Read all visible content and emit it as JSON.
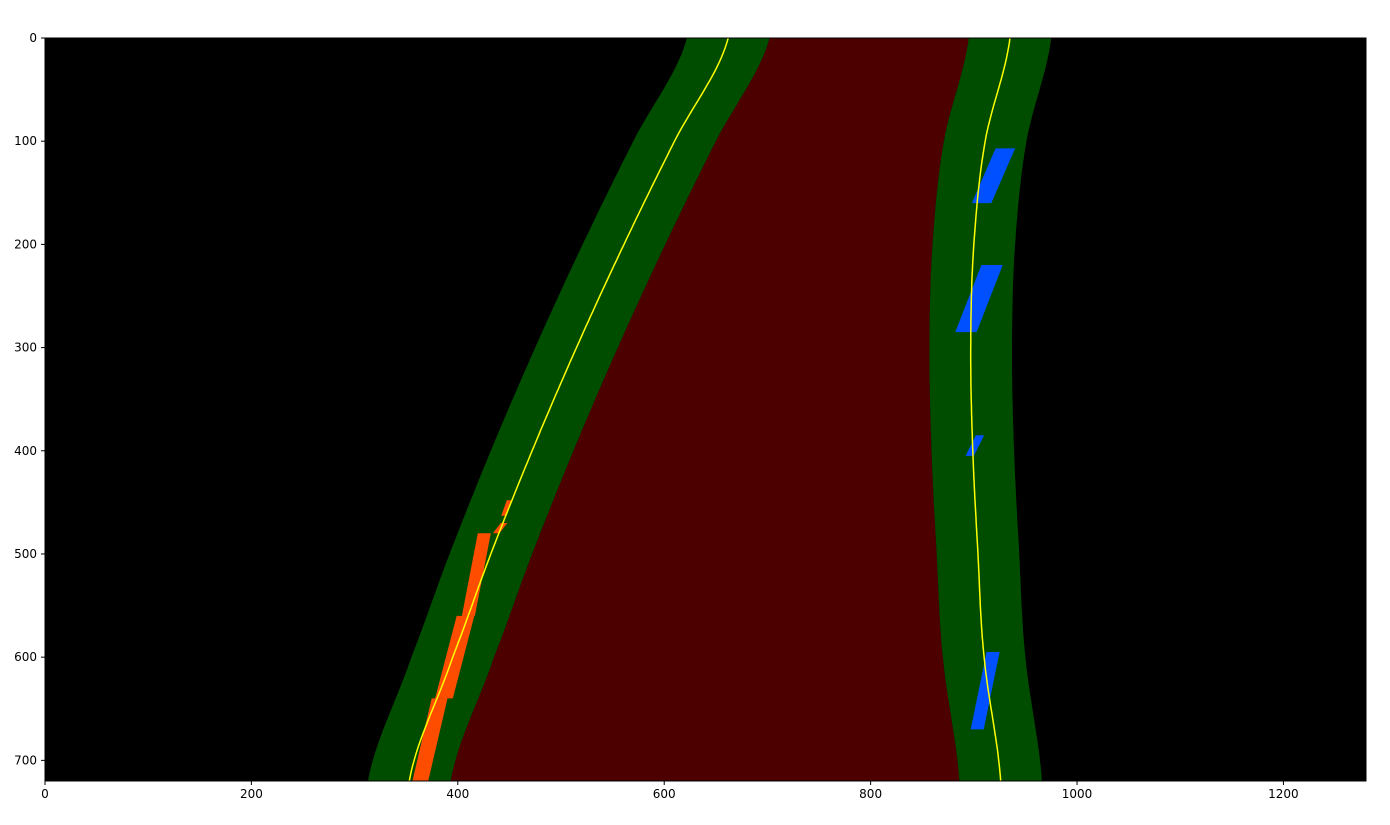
{
  "chart_data": {
    "type": "image",
    "title": "",
    "xlabel": "",
    "ylabel": "",
    "image_size": {
      "width": 1280,
      "height": 720
    },
    "xlim": [
      0,
      1280
    ],
    "ylim": [
      720,
      0
    ],
    "grid": false,
    "x_ticks": [
      0,
      200,
      400,
      600,
      800,
      1000,
      1200
    ],
    "y_ticks": [
      0,
      100,
      200,
      300,
      400,
      500,
      600,
      700
    ],
    "colors": {
      "background": "#000000",
      "lane_fill": "#4d0000",
      "search_margin": "#004d00",
      "fit_line": "#ffff00",
      "left_pixels": "#ff4d00",
      "right_pixels": "#0050ff"
    },
    "left_fit": {
      "y": [
        0,
        100,
        200,
        300,
        400,
        500,
        600,
        720
      ],
      "x": [
        662,
        610,
        561,
        515,
        472,
        432,
        395,
        353
      ]
    },
    "right_fit": {
      "y": [
        0,
        100,
        200,
        300,
        400,
        500,
        600,
        720
      ],
      "x": [
        935,
        911,
        900,
        897,
        899,
        904,
        910,
        926
      ]
    },
    "margin": 40,
    "left_pixel_blobs": [
      {
        "y": [
          448,
          463
        ],
        "x": [
          442,
          452
        ]
      },
      {
        "y": [
          470,
          480
        ],
        "x": [
          434,
          448
        ]
      },
      {
        "y": [
          480,
          560
        ],
        "x": [
          404,
          432
        ]
      },
      {
        "y": [
          560,
          640
        ],
        "x": [
          378,
          416
        ]
      },
      {
        "y": [
          640,
          720
        ],
        "x": [
          356,
          390
        ]
      }
    ],
    "right_pixel_blobs": [
      {
        "y": [
          107,
          160
        ],
        "x": [
          898,
          940
        ]
      },
      {
        "y": [
          220,
          285
        ],
        "x": [
          882,
          928
        ]
      },
      {
        "y": [
          385,
          405
        ],
        "x": [
          892,
          910
        ]
      },
      {
        "y": [
          595,
          670
        ],
        "x": [
          897,
          925
        ]
      }
    ]
  }
}
